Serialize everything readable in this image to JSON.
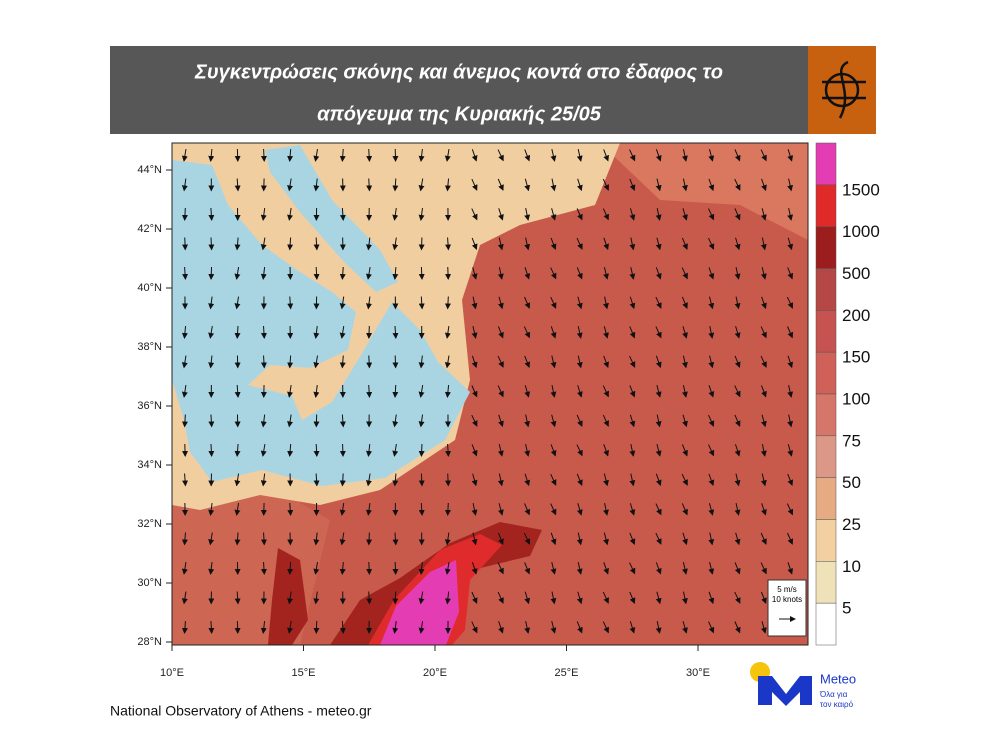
{
  "header": {
    "title_lines": [
      "Συγκεντρώσεις σκόνης και άνεμος κοντά στο έδαφος το",
      "απόγευμα της Κυριακής 25/05"
    ]
  },
  "map": {
    "lat_labels": [
      "44°N",
      "42°N",
      "40°N",
      "38°N",
      "36°N",
      "34°N",
      "32°N",
      "30°N",
      "28°N"
    ],
    "lon_labels": [
      "10°E",
      "15°E",
      "20°E",
      "25°E",
      "30°E"
    ]
  },
  "colorbar": {
    "labels": [
      1500,
      1000,
      500,
      200,
      150,
      100,
      75,
      50,
      25,
      10,
      5
    ],
    "colors": [
      "#e43cb2",
      "#e02a2a",
      "#9c1d1d",
      "#b54846",
      "#c6534f",
      "#cf6158",
      "#d6756a",
      "#dc9886",
      "#e6ab82",
      "#f3d0a2",
      "#efe2b9",
      "#ffffff"
    ]
  },
  "wind_legend": {
    "speed": "5 m/s",
    "knots": "10 knots"
  },
  "footer": {
    "credit": "National Observatory of Athens - meteo.gr"
  },
  "logo": {
    "name": "Meteo",
    "tagline": [
      "Όλα για",
      "τον καιρό"
    ]
  }
}
